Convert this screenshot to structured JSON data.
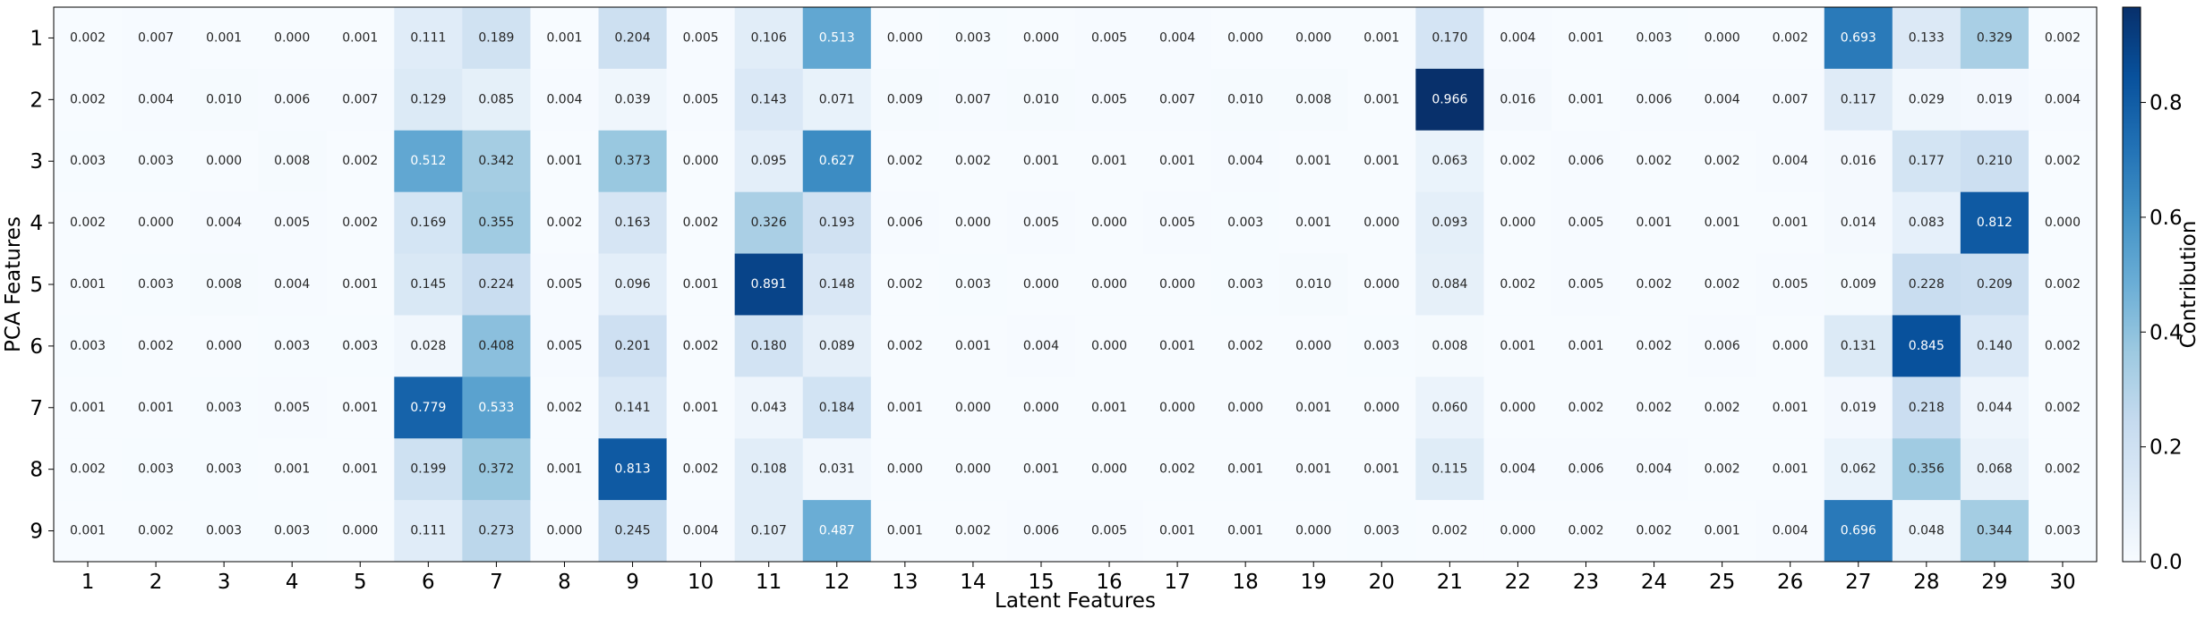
{
  "chart_data": {
    "type": "heatmap",
    "xlabel": "Latent Features",
    "ylabel": "PCA Features",
    "x_categories": [
      "1",
      "2",
      "3",
      "4",
      "5",
      "6",
      "7",
      "8",
      "9",
      "10",
      "11",
      "12",
      "13",
      "14",
      "15",
      "16",
      "17",
      "18",
      "19",
      "20",
      "21",
      "22",
      "23",
      "24",
      "25",
      "26",
      "27",
      "28",
      "29",
      "30"
    ],
    "y_categories": [
      "1",
      "2",
      "3",
      "4",
      "5",
      "6",
      "7",
      "8",
      "9"
    ],
    "values": [
      [
        0.002,
        0.007,
        0.001,
        0.0,
        0.001,
        0.111,
        0.189,
        0.001,
        0.204,
        0.005,
        0.106,
        0.513,
        0.0,
        0.003,
        0.0,
        0.005,
        0.004,
        0.0,
        0.0,
        0.001,
        0.17,
        0.004,
        0.001,
        0.003,
        0.0,
        0.002,
        0.693,
        0.133,
        0.329,
        0.002
      ],
      [
        0.002,
        0.004,
        0.01,
        0.006,
        0.007,
        0.129,
        0.085,
        0.004,
        0.039,
        0.005,
        0.143,
        0.071,
        0.009,
        0.007,
        0.01,
        0.005,
        0.007,
        0.01,
        0.008,
        0.001,
        0.966,
        0.016,
        0.001,
        0.006,
        0.004,
        0.007,
        0.117,
        0.029,
        0.019,
        0.004
      ],
      [
        0.003,
        0.003,
        0.0,
        0.008,
        0.002,
        0.512,
        0.342,
        0.001,
        0.373,
        0.0,
        0.095,
        0.627,
        0.002,
        0.002,
        0.001,
        0.001,
        0.001,
        0.004,
        0.001,
        0.001,
        0.063,
        0.002,
        0.006,
        0.002,
        0.002,
        0.004,
        0.016,
        0.177,
        0.21,
        0.002
      ],
      [
        0.002,
        0.0,
        0.004,
        0.005,
        0.002,
        0.169,
        0.355,
        0.002,
        0.163,
        0.002,
        0.326,
        0.193,
        0.006,
        0.0,
        0.005,
        0.0,
        0.005,
        0.003,
        0.001,
        0.0,
        0.093,
        0.0,
        0.005,
        0.001,
        0.001,
        0.001,
        0.014,
        0.083,
        0.812,
        0.0
      ],
      [
        0.001,
        0.003,
        0.008,
        0.004,
        0.001,
        0.145,
        0.224,
        0.005,
        0.096,
        0.001,
        0.891,
        0.148,
        0.002,
        0.003,
        0.0,
        0.0,
        0.0,
        0.003,
        0.01,
        0.0,
        0.084,
        0.002,
        0.005,
        0.002,
        0.002,
        0.005,
        0.009,
        0.228,
        0.209,
        0.002
      ],
      [
        0.003,
        0.002,
        0.0,
        0.003,
        0.003,
        0.028,
        0.408,
        0.005,
        0.201,
        0.002,
        0.18,
        0.089,
        0.002,
        0.001,
        0.004,
        0.0,
        0.001,
        0.002,
        0.0,
        0.003,
        0.008,
        0.001,
        0.001,
        0.002,
        0.006,
        0.0,
        0.131,
        0.845,
        0.14,
        0.002
      ],
      [
        0.001,
        0.001,
        0.003,
        0.005,
        0.001,
        0.779,
        0.533,
        0.002,
        0.141,
        0.001,
        0.043,
        0.184,
        0.001,
        0.0,
        0.0,
        0.001,
        0.0,
        0.0,
        0.001,
        0.0,
        0.06,
        0.0,
        0.002,
        0.002,
        0.002,
        0.001,
        0.019,
        0.218,
        0.044,
        0.002
      ],
      [
        0.002,
        0.003,
        0.003,
        0.001,
        0.001,
        0.199,
        0.372,
        0.001,
        0.813,
        0.002,
        0.108,
        0.031,
        0.0,
        0.0,
        0.001,
        0.0,
        0.002,
        0.001,
        0.001,
        0.001,
        0.115,
        0.004,
        0.006,
        0.004,
        0.002,
        0.001,
        0.062,
        0.356,
        0.068,
        0.002
      ],
      [
        0.001,
        0.002,
        0.003,
        0.003,
        0.0,
        0.111,
        0.273,
        0.0,
        0.245,
        0.004,
        0.107,
        0.487,
        0.001,
        0.002,
        0.006,
        0.005,
        0.001,
        0.001,
        0.0,
        0.003,
        0.002,
        0.0,
        0.002,
        0.002,
        0.001,
        0.004,
        0.696,
        0.048,
        0.344,
        0.003
      ]
    ],
    "value_format_decimals": 3,
    "colorscale": "Blues",
    "color_range": [
      0.0,
      0.966
    ],
    "colorbar": {
      "label": "Contribution",
      "ticks": [
        0.0,
        0.2,
        0.4,
        0.6,
        0.8
      ],
      "tick_labels": [
        "0.0",
        "0.2",
        "0.4",
        "0.6",
        "0.8"
      ]
    },
    "grid": false,
    "legend": "colorbar-right"
  }
}
